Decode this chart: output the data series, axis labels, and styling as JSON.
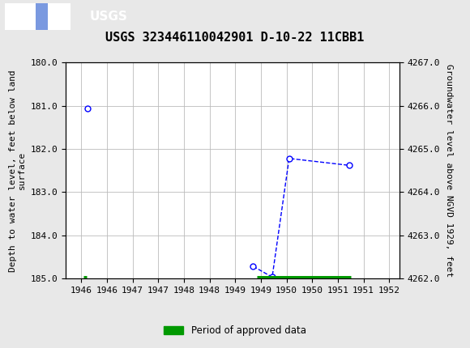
{
  "title": "USGS 323446110042901 D-10-22 11CBB1",
  "header_color": "#1a6b3c",
  "ylabel_left": "Depth to water level, feet below land\nsurface",
  "ylabel_right": "Groundwater level above NGVD 1929, feet",
  "ylim_left": [
    185.0,
    180.0
  ],
  "ylim_right": [
    4262.0,
    4267.0
  ],
  "xlim": [
    1945.7,
    1952.2
  ],
  "xticks": [
    1946,
    1946.5,
    1947,
    1947.5,
    1948,
    1948.5,
    1949,
    1949.5,
    1950,
    1950.5,
    1951,
    1951.5,
    1952
  ],
  "xtick_labels": [
    "1946",
    "1946",
    "1947",
    "1947",
    "1948",
    "1948",
    "1949",
    "1949",
    "1950",
    "1950",
    "1951",
    "1951",
    "1952"
  ],
  "yticks_left": [
    180.0,
    181.0,
    182.0,
    183.0,
    184.0,
    185.0
  ],
  "yticks_right": [
    4262.0,
    4263.0,
    4264.0,
    4265.0,
    4266.0,
    4267.0
  ],
  "isolated_point_x": [
    1946.12
  ],
  "isolated_point_y": [
    181.07
  ],
  "connected_points_x": [
    1949.35,
    1949.72,
    1950.05,
    1951.22
  ],
  "connected_points_y": [
    184.72,
    184.97,
    182.22,
    182.38
  ],
  "point_color": "blue",
  "line_color": "blue",
  "line_style": "--",
  "marker": "o",
  "marker_facecolor": "white",
  "marker_edgecolor": "blue",
  "marker_size": 5,
  "marker_linewidth": 1.0,
  "line_linewidth": 1.0,
  "green_bar_segments": [
    {
      "x_start": 1946.05,
      "x_end": 1946.11,
      "y": 185.0
    },
    {
      "x_start": 1949.42,
      "x_end": 1951.25,
      "y": 185.0
    }
  ],
  "green_color": "#009900",
  "grid_color": "#bbbbbb",
  "background_color": "#e8e8e8",
  "plot_bg_color": "#ffffff",
  "legend_label": "Period of approved data",
  "title_fontsize": 11,
  "axis_label_fontsize": 8,
  "tick_fontsize": 8
}
